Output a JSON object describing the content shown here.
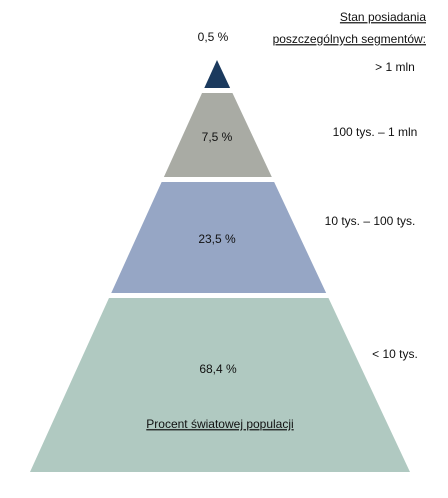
{
  "chart_data": {
    "type": "pyramid",
    "title": [
      "Stan posiadania",
      "poszczególnych segmentów:"
    ],
    "label": "Procent światowej populacji",
    "categories": [
      "> 1 mln",
      "100 tys. – 1 mln",
      "10 tys. – 100 tys.",
      "< 10 tys."
    ],
    "values": [
      0.5,
      7.5,
      23.5,
      68.4
    ],
    "value_labels": [
      "0,5 %",
      "7,5 %",
      "23,5 %",
      "68,4 %"
    ],
    "colors": [
      "#1b3a5e",
      "#a9aba4",
      "#96a6c5",
      "#b0c9c1"
    ]
  }
}
